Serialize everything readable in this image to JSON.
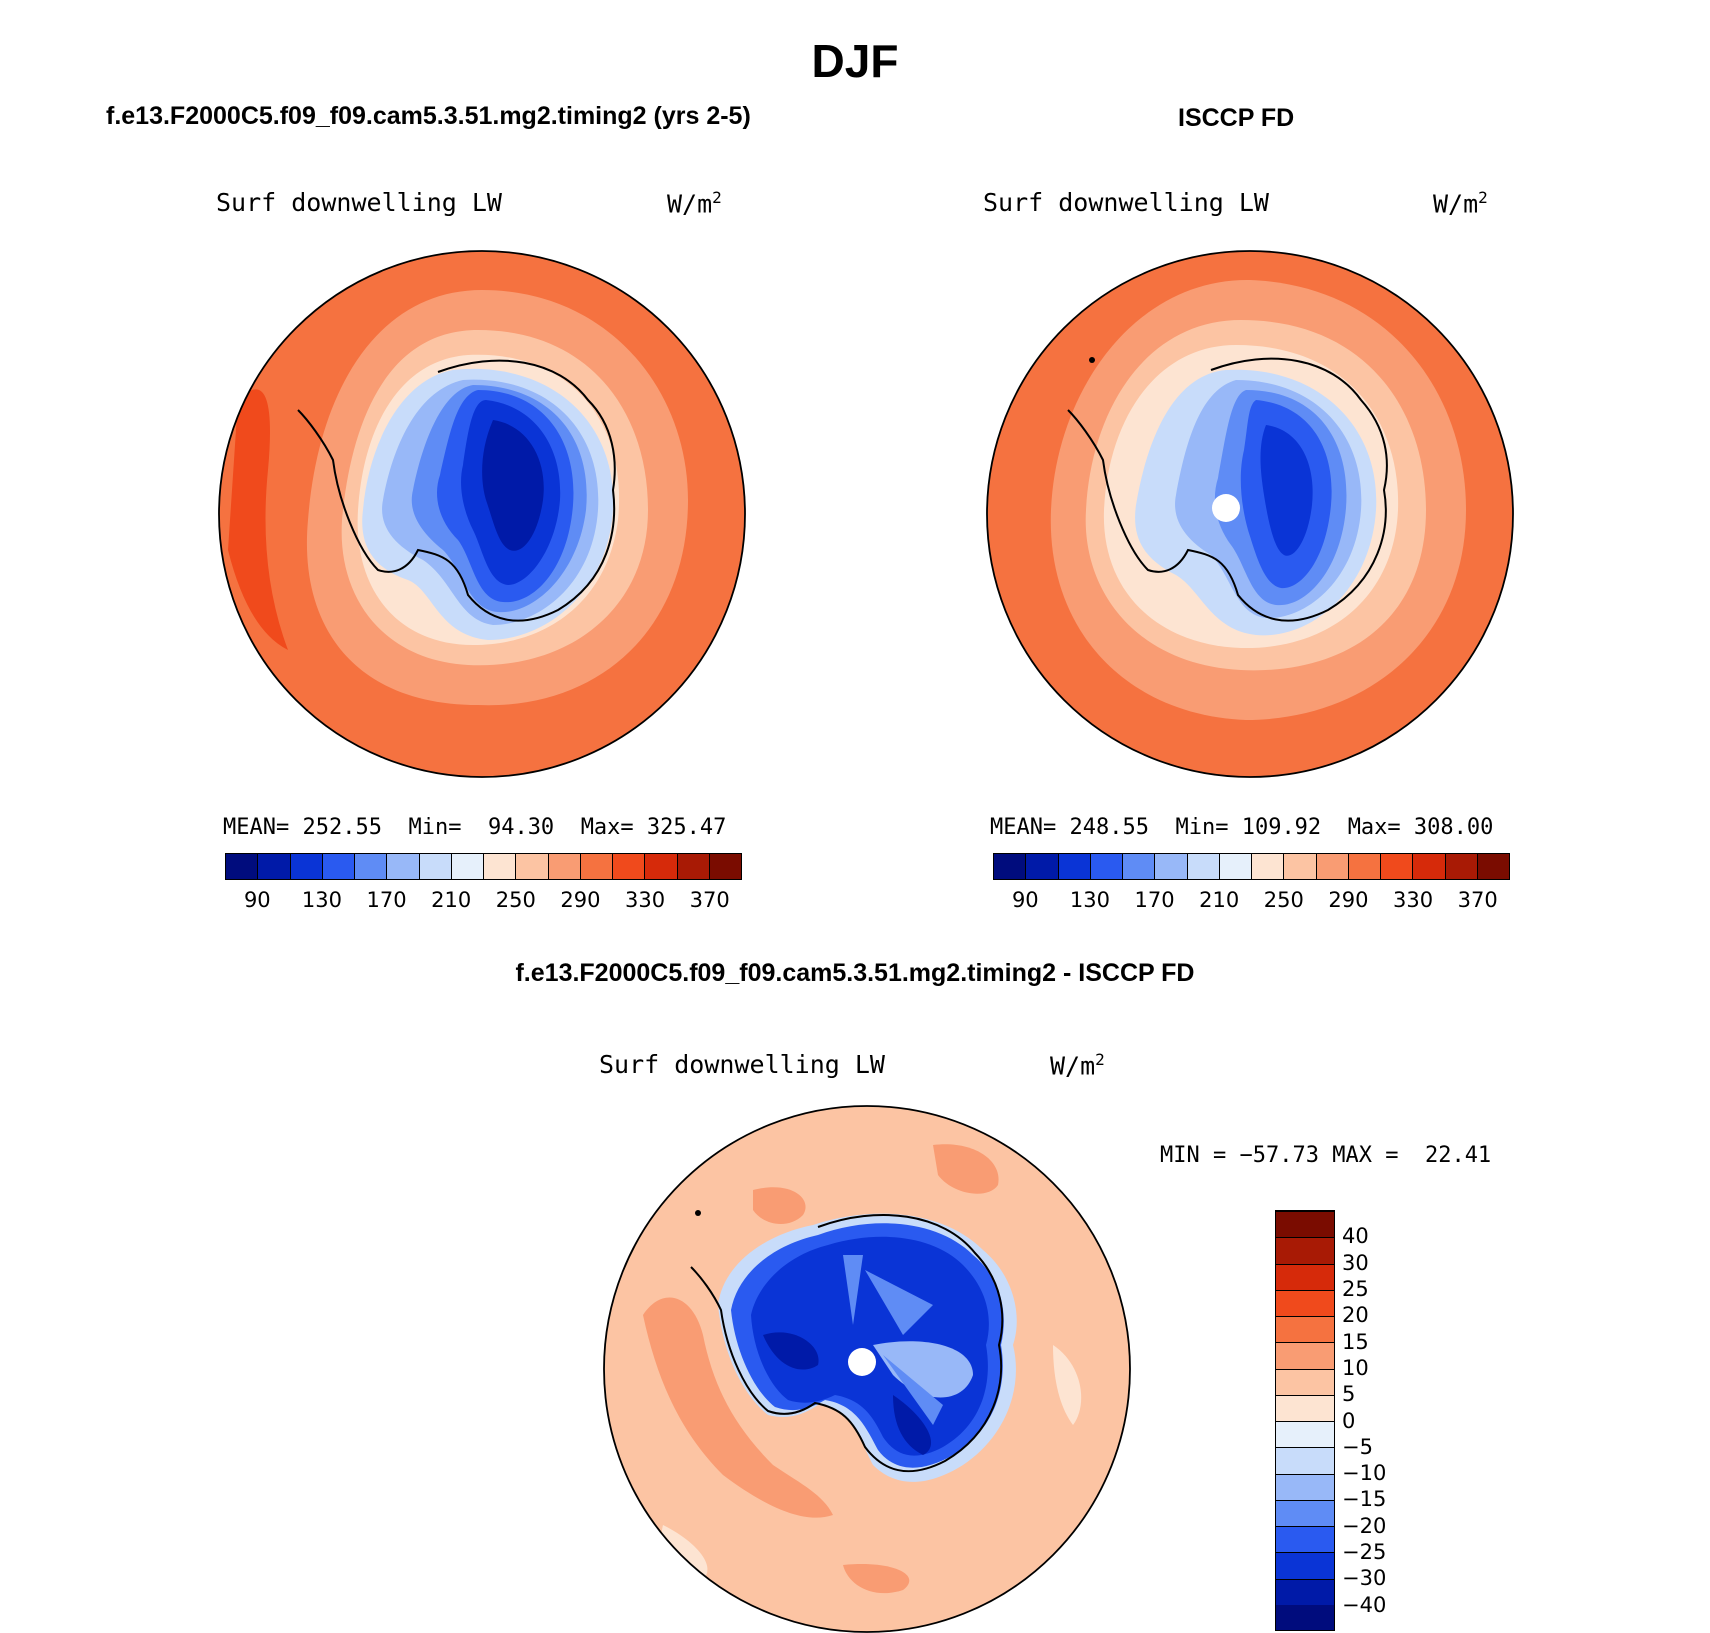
{
  "figure": {
    "season": "DJF",
    "panels": [
      {
        "title": "f.e13.F2000C5.f09_f09.cam5.3.51.mg2.timing2 (yrs 2-5)",
        "variable": "Surf downwelling LW",
        "units": "W/m",
        "units_sup": "2",
        "stats": {
          "mean_label": "MEAN=",
          "mean": "252.55",
          "min_label": "Min=",
          "min": "94.30",
          "max_label": "Max=",
          "max": "325.47"
        }
      },
      {
        "title": "ISCCP FD",
        "variable": "Surf downwelling LW",
        "units": "W/m",
        "units_sup": "2",
        "stats": {
          "mean_label": "MEAN=",
          "mean": "248.55",
          "min_label": "Min=",
          "min": "109.92",
          "max_label": "Max=",
          "max": "308.00"
        }
      },
      {
        "title": "f.e13.F2000C5.f09_f09.cam5.3.51.mg2.timing2 - ISCCP FD",
        "variable": "Surf downwelling LW",
        "units": "W/m",
        "units_sup": "2",
        "stats": {
          "min_label": "MIN =",
          "min": "−57.73",
          "max_label": "MAX =",
          "max": "22.41"
        }
      }
    ],
    "colorbar_abs": {
      "ticks": [
        "90",
        "130",
        "170",
        "210",
        "250",
        "290",
        "330",
        "370"
      ],
      "colors": [
        "#000c7d",
        "#001aa8",
        "#0a34d6",
        "#2a5af0",
        "#5f8cf5",
        "#98b8f8",
        "#c8dcfa",
        "#e6f0fb",
        "#fde4d2",
        "#fcc4a3",
        "#f99c73",
        "#f57240",
        "#f04a1c",
        "#d62a0a",
        "#a81a05",
        "#7a0c00"
      ]
    },
    "colorbar_diff": {
      "ticks": [
        "40",
        "30",
        "25",
        "20",
        "15",
        "10",
        "5",
        "0",
        "−5",
        "−10",
        "−15",
        "−20",
        "−25",
        "−30",
        "−40"
      ],
      "colors": [
        "#000c7d",
        "#001aa8",
        "#0a34d6",
        "#2a5af0",
        "#5f8cf5",
        "#98b8f8",
        "#c8dcfa",
        "#e6f0fb",
        "#fde4d2",
        "#fcc4a3",
        "#f99c73",
        "#f57240",
        "#f04a1c",
        "#d62a0a",
        "#a81a05",
        "#7a0c00"
      ]
    }
  }
}
